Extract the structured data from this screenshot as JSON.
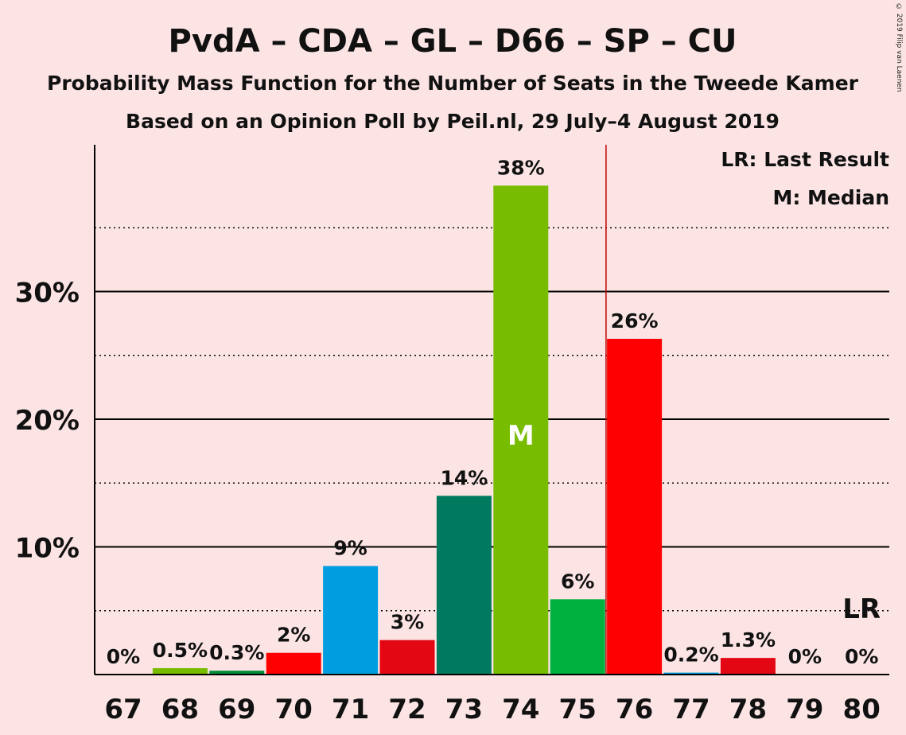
{
  "title": "PvdA – CDA – GL – D66 – SP – CU",
  "subtitle": "Probability Mass Function for the Number of Seats in the Tweede Kamer",
  "subtitle2": "Based on an Opinion Poll by Peil.nl, 29 July–4 August 2019",
  "copyright": "© 2019 Filip van Laenen",
  "legend": {
    "lr": "LR: Last Result",
    "m": "M: Median"
  },
  "chart_data": {
    "type": "bar",
    "categories": [
      "67",
      "68",
      "69",
      "70",
      "71",
      "72",
      "73",
      "74",
      "75",
      "76",
      "77",
      "78",
      "79",
      "80"
    ],
    "values": [
      0,
      0.5,
      0.3,
      1.7,
      8.5,
      2.7,
      14.0,
      38.3,
      5.9,
      26.3,
      0.15,
      1.3,
      0,
      0
    ],
    "data_labels": [
      "0%",
      "0.5%",
      "0.3%",
      "2%",
      "9%",
      "3%",
      "14%",
      "38%",
      "6%",
      "26%",
      "0.2%",
      "1.3%",
      "0%",
      "0%"
    ],
    "colors": [
      "#e30613",
      "#78bc00",
      "#008c3a",
      "#ff0000",
      "#009ee0",
      "#e30613",
      "#007a5e",
      "#78bc00",
      "#00b140",
      "#ff0000",
      "#009ee0",
      "#e30613",
      "#e30613",
      "#e30613"
    ],
    "y_ticks": [
      10,
      20,
      30
    ],
    "y_tick_labels": [
      "10%",
      "20%",
      "30%"
    ],
    "ylim": [
      0,
      41.5
    ],
    "grid": true,
    "median_seat": "74",
    "median_label": "M",
    "majority_line_between": [
      "75",
      "76"
    ],
    "last_result_seat": "80",
    "last_result_label": "LR",
    "majority_line_color": "#c00000"
  }
}
